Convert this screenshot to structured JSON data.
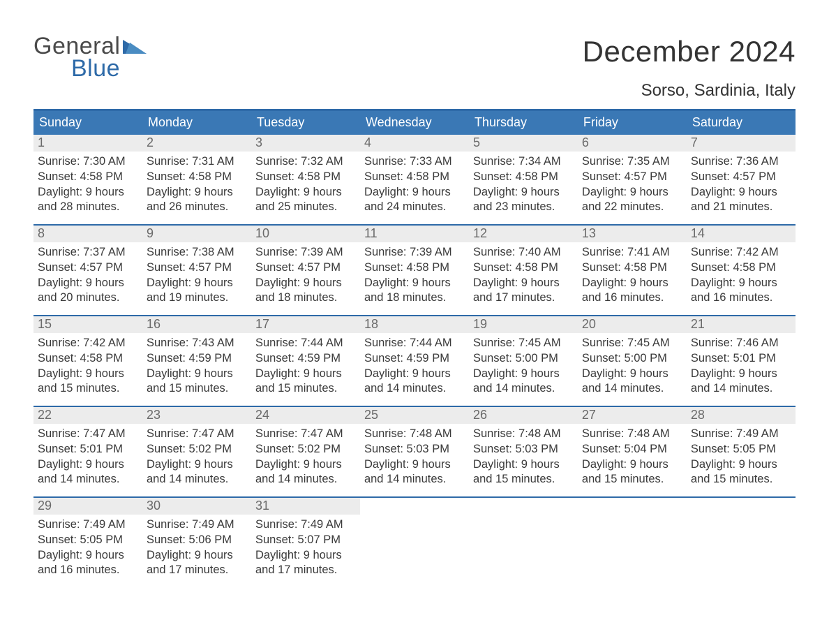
{
  "logo": {
    "line1": "General",
    "line2": "Blue"
  },
  "title": "December 2024",
  "subtitle": "Sorso, Sardinia, Italy",
  "colors": {
    "header_bg": "#3a78b5",
    "week_top_border": "#2e6aa8",
    "daynum_bg": "#ececec",
    "page_bg": "#ffffff",
    "text": "#3a3a3a",
    "dow_text": "#ffffff",
    "logo_gray": "#4a4a4a",
    "logo_blue": "#2e6aa8"
  },
  "layout": {
    "columns": 7,
    "rows": 5,
    "weekday_start": "Sunday"
  },
  "dow": [
    "Sunday",
    "Monday",
    "Tuesday",
    "Wednesday",
    "Thursday",
    "Friday",
    "Saturday"
  ],
  "days": [
    {
      "n": 1,
      "sunrise": "7:30 AM",
      "sunset": "4:58 PM",
      "daylight": "9 hours and 28 minutes."
    },
    {
      "n": 2,
      "sunrise": "7:31 AM",
      "sunset": "4:58 PM",
      "daylight": "9 hours and 26 minutes."
    },
    {
      "n": 3,
      "sunrise": "7:32 AM",
      "sunset": "4:58 PM",
      "daylight": "9 hours and 25 minutes."
    },
    {
      "n": 4,
      "sunrise": "7:33 AM",
      "sunset": "4:58 PM",
      "daylight": "9 hours and 24 minutes."
    },
    {
      "n": 5,
      "sunrise": "7:34 AM",
      "sunset": "4:58 PM",
      "daylight": "9 hours and 23 minutes."
    },
    {
      "n": 6,
      "sunrise": "7:35 AM",
      "sunset": "4:57 PM",
      "daylight": "9 hours and 22 minutes."
    },
    {
      "n": 7,
      "sunrise": "7:36 AM",
      "sunset": "4:57 PM",
      "daylight": "9 hours and 21 minutes."
    },
    {
      "n": 8,
      "sunrise": "7:37 AM",
      "sunset": "4:57 PM",
      "daylight": "9 hours and 20 minutes."
    },
    {
      "n": 9,
      "sunrise": "7:38 AM",
      "sunset": "4:57 PM",
      "daylight": "9 hours and 19 minutes."
    },
    {
      "n": 10,
      "sunrise": "7:39 AM",
      "sunset": "4:57 PM",
      "daylight": "9 hours and 18 minutes."
    },
    {
      "n": 11,
      "sunrise": "7:39 AM",
      "sunset": "4:58 PM",
      "daylight": "9 hours and 18 minutes."
    },
    {
      "n": 12,
      "sunrise": "7:40 AM",
      "sunset": "4:58 PM",
      "daylight": "9 hours and 17 minutes."
    },
    {
      "n": 13,
      "sunrise": "7:41 AM",
      "sunset": "4:58 PM",
      "daylight": "9 hours and 16 minutes."
    },
    {
      "n": 14,
      "sunrise": "7:42 AM",
      "sunset": "4:58 PM",
      "daylight": "9 hours and 16 minutes."
    },
    {
      "n": 15,
      "sunrise": "7:42 AM",
      "sunset": "4:58 PM",
      "daylight": "9 hours and 15 minutes."
    },
    {
      "n": 16,
      "sunrise": "7:43 AM",
      "sunset": "4:59 PM",
      "daylight": "9 hours and 15 minutes."
    },
    {
      "n": 17,
      "sunrise": "7:44 AM",
      "sunset": "4:59 PM",
      "daylight": "9 hours and 15 minutes."
    },
    {
      "n": 18,
      "sunrise": "7:44 AM",
      "sunset": "4:59 PM",
      "daylight": "9 hours and 14 minutes."
    },
    {
      "n": 19,
      "sunrise": "7:45 AM",
      "sunset": "5:00 PM",
      "daylight": "9 hours and 14 minutes."
    },
    {
      "n": 20,
      "sunrise": "7:45 AM",
      "sunset": "5:00 PM",
      "daylight": "9 hours and 14 minutes."
    },
    {
      "n": 21,
      "sunrise": "7:46 AM",
      "sunset": "5:01 PM",
      "daylight": "9 hours and 14 minutes."
    },
    {
      "n": 22,
      "sunrise": "7:47 AM",
      "sunset": "5:01 PM",
      "daylight": "9 hours and 14 minutes."
    },
    {
      "n": 23,
      "sunrise": "7:47 AM",
      "sunset": "5:02 PM",
      "daylight": "9 hours and 14 minutes."
    },
    {
      "n": 24,
      "sunrise": "7:47 AM",
      "sunset": "5:02 PM",
      "daylight": "9 hours and 14 minutes."
    },
    {
      "n": 25,
      "sunrise": "7:48 AM",
      "sunset": "5:03 PM",
      "daylight": "9 hours and 14 minutes."
    },
    {
      "n": 26,
      "sunrise": "7:48 AM",
      "sunset": "5:03 PM",
      "daylight": "9 hours and 15 minutes."
    },
    {
      "n": 27,
      "sunrise": "7:48 AM",
      "sunset": "5:04 PM",
      "daylight": "9 hours and 15 minutes."
    },
    {
      "n": 28,
      "sunrise": "7:49 AM",
      "sunset": "5:05 PM",
      "daylight": "9 hours and 15 minutes."
    },
    {
      "n": 29,
      "sunrise": "7:49 AM",
      "sunset": "5:05 PM",
      "daylight": "9 hours and 16 minutes."
    },
    {
      "n": 30,
      "sunrise": "7:49 AM",
      "sunset": "5:06 PM",
      "daylight": "9 hours and 17 minutes."
    },
    {
      "n": 31,
      "sunrise": "7:49 AM",
      "sunset": "5:07 PM",
      "daylight": "9 hours and 17 minutes."
    }
  ],
  "labels": {
    "sunrise": "Sunrise:",
    "sunset": "Sunset:",
    "daylight": "Daylight:"
  },
  "typography": {
    "title_pt": 42,
    "subtitle_pt": 24,
    "dow_pt": 18,
    "body_pt": 16.5
  }
}
